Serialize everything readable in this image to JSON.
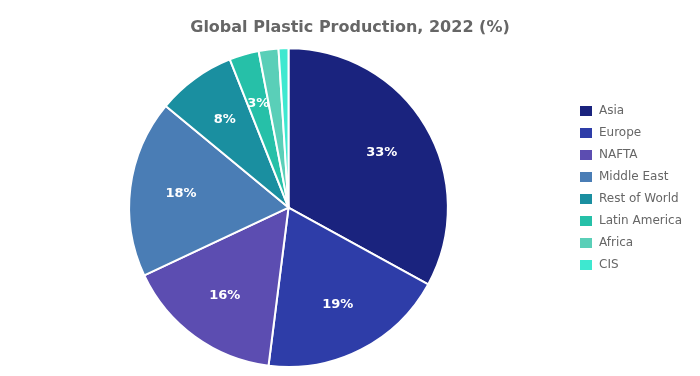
{
  "chart_data": {
    "type": "pie",
    "title": "Global Plastic Production, 2022 (%)",
    "categories": [
      "Asia",
      "Europe",
      "NAFTA",
      "Middle East",
      "Rest of World",
      "Latin America",
      "Africa",
      "CIS"
    ],
    "values": [
      33,
      19,
      16,
      18,
      8,
      3,
      2,
      1
    ],
    "value_labels": [
      "33%",
      "19%",
      "16%",
      "18%",
      "8%",
      "3%",
      null,
      null
    ],
    "colors": [
      "#1a237e",
      "#2e3da8",
      "#5c4db1",
      "#4a7db5",
      "#1a8fa0",
      "#26c0a8",
      "#5acfb8",
      "#3ee8d0"
    ],
    "data_labels": true,
    "legend": "right"
  }
}
